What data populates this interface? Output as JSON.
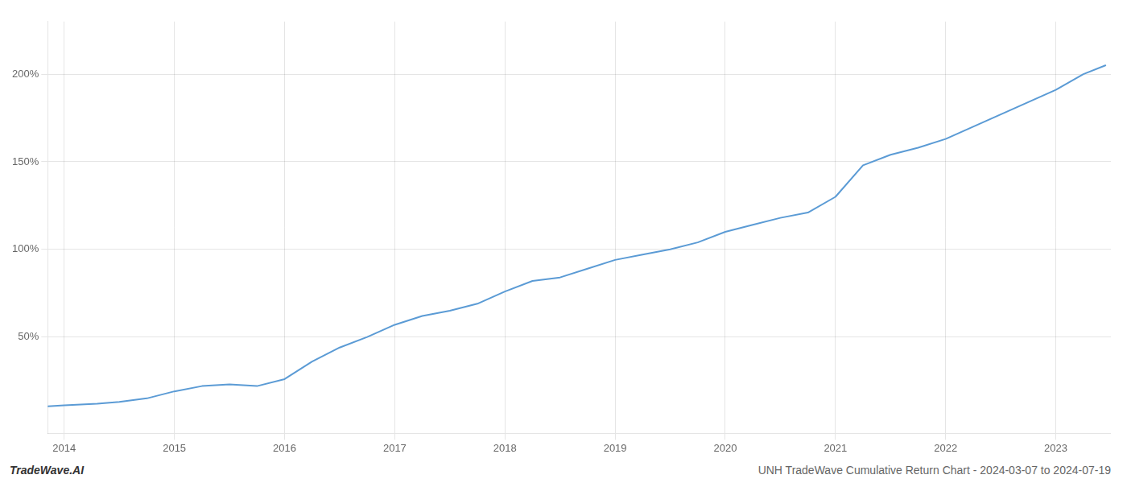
{
  "chart_data": {
    "type": "line",
    "x": [
      2013.85,
      2014.0,
      2014.15,
      2014.3,
      2014.5,
      2014.75,
      2015.0,
      2015.25,
      2015.5,
      2015.75,
      2016.0,
      2016.25,
      2016.5,
      2016.75,
      2017.0,
      2017.25,
      2017.5,
      2017.75,
      2018.0,
      2018.25,
      2018.5,
      2018.75,
      2019.0,
      2019.25,
      2019.5,
      2019.75,
      2020.0,
      2020.25,
      2020.5,
      2020.75,
      2021.0,
      2021.25,
      2021.5,
      2021.75,
      2022.0,
      2022.25,
      2022.5,
      2022.75,
      2023.0,
      2023.25,
      2023.45
    ],
    "values": [
      10.5,
      11,
      11.5,
      12,
      13,
      15,
      19,
      22,
      23,
      22,
      26,
      36,
      44,
      50,
      57,
      62,
      65,
      69,
      76,
      82,
      84,
      89,
      94,
      97,
      100,
      104,
      110,
      114,
      118,
      121,
      130,
      148,
      154,
      158,
      163,
      170,
      177,
      184,
      191,
      200,
      205
    ],
    "color": "#5b9bd5",
    "xlim": [
      2013.85,
      2023.5
    ],
    "xticks": [
      2014,
      2015,
      2016,
      2017,
      2018,
      2019,
      2020,
      2021,
      2022,
      2023
    ],
    "ylim": [
      -5,
      230
    ],
    "yticks": [
      {
        "value": 50,
        "label": "50%"
      },
      {
        "value": 100,
        "label": "100%"
      },
      {
        "value": 150,
        "label": "150%"
      },
      {
        "value": 200,
        "label": "200%"
      }
    ],
    "grid": true,
    "annotations": [
      "TradeWave.AI",
      "UNH TradeWave Cumulative Return Chart - 2024-03-07 to 2024-07-19"
    ]
  }
}
